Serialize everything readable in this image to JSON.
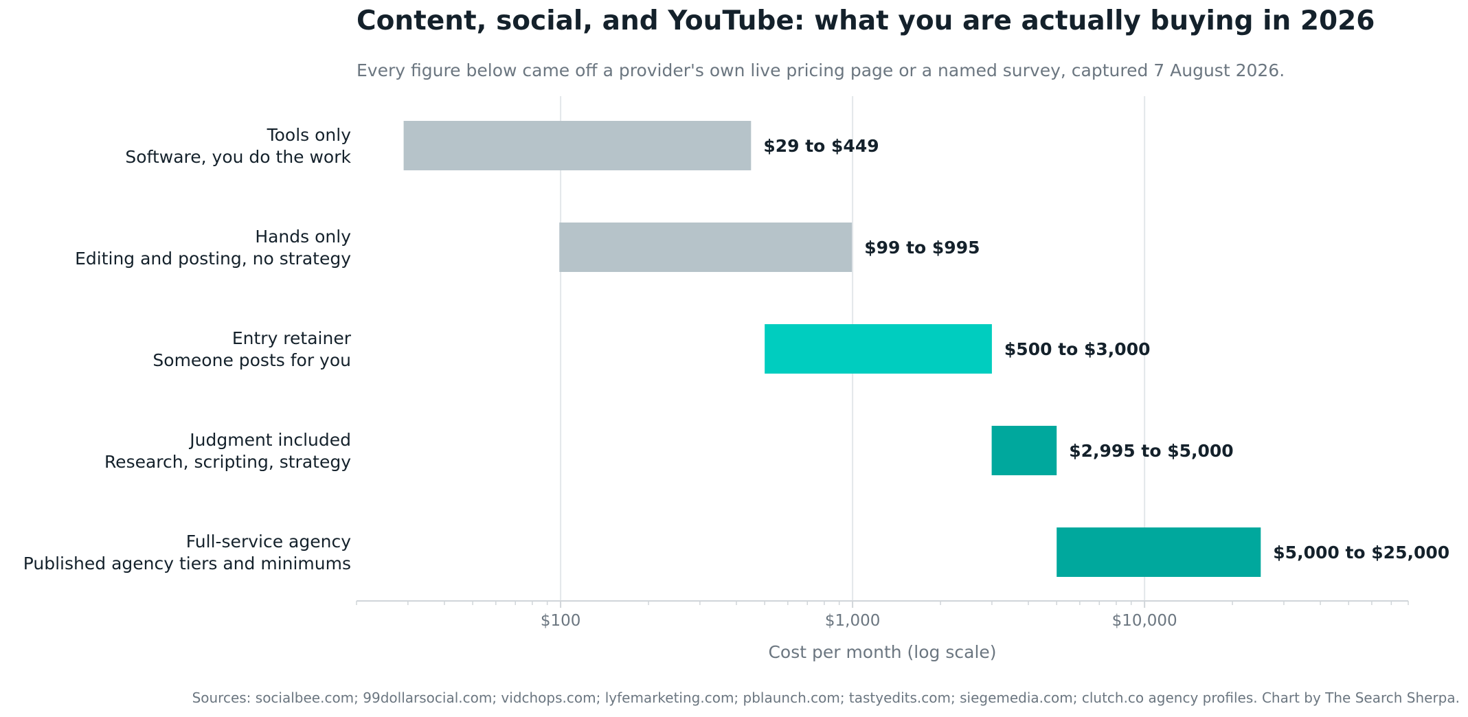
{
  "title": "Content, social, and YouTube: what you are actually buying in 2026",
  "subtitle": "Every figure below came off a provider's own live pricing page or a named survey, captured 7 August 2026.",
  "source": "Sources: socialbee.com; 99dollarsocial.com; vidchops.com; lyfemarketing.com; pblaunch.com; tastyedits.com; siegemedia.com; clutch.co agency profiles. Chart by The Search Sherpa.",
  "chart_data": {
    "type": "bar",
    "orientation": "horizontal",
    "title": "Content, social, and YouTube: what you are actually buying in 2026",
    "xlabel": "Cost per month (log scale)",
    "ylabel": "",
    "xscale": "log",
    "xlim": [
      20,
      80000
    ],
    "xticks": [
      {
        "value": 100,
        "label": "$100"
      },
      {
        "value": 1000,
        "label": "$1,000"
      },
      {
        "value": 10000,
        "label": "$10,000"
      }
    ],
    "grid": true,
    "legend": "none",
    "categories": [
      {
        "name": "Tools only",
        "description": "Software, you do the work"
      },
      {
        "name": "Hands only",
        "description": "Editing and posting, no strategy"
      },
      {
        "name": "Entry retainer",
        "description": "Someone posts for you"
      },
      {
        "name": "Judgment included",
        "description": "Research, scripting, strategy"
      },
      {
        "name": "Full-service agency",
        "description": "Published agency tiers and minimums"
      }
    ],
    "ranges": [
      {
        "low": 29,
        "high": 449,
        "label": "$29 to $449",
        "color": "#b6c3c9"
      },
      {
        "low": 99,
        "high": 995,
        "label": "$99 to $995",
        "color": "#b6c3c9"
      },
      {
        "low": 500,
        "high": 3000,
        "label": "$500 to $3,000",
        "color": "#00cdbf"
      },
      {
        "low": 2995,
        "high": 5000,
        "label": "$2,995 to $5,000",
        "color": "#00a89d"
      },
      {
        "low": 5000,
        "high": 25000,
        "label": "$5,000 to $25,000",
        "color": "#00a89d"
      }
    ]
  },
  "colors": {
    "text": "#14212b",
    "muted": "#6b7680",
    "grid": "#e3e7ea",
    "axis": "#d0d5d9"
  }
}
